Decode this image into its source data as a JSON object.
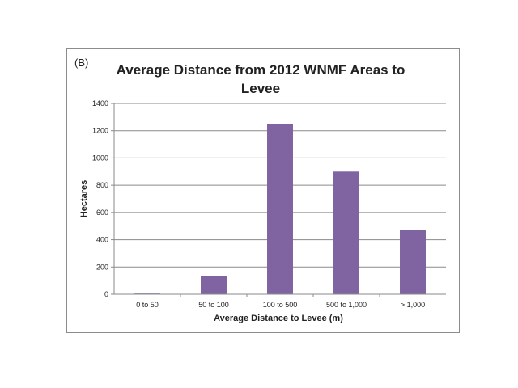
{
  "chart_data": {
    "type": "bar",
    "panel_label": "(B)",
    "title_lines": [
      "Average Distance from 2012 WNMF Areas to",
      "Levee"
    ],
    "xlabel": "Average Distance to Levee (m)",
    "ylabel": "Hectares",
    "categories": [
      "0 to 50",
      "50 to 100",
      "100 to 500",
      "500 to 1,000",
      "> 1,000"
    ],
    "values": [
      5,
      135,
      1250,
      900,
      470
    ],
    "ylim": [
      0,
      1400
    ],
    "yticks": [
      0,
      200,
      400,
      600,
      800,
      1000,
      1200,
      1400
    ],
    "grid": true,
    "legend": "none",
    "bar_color": "#8064a2"
  }
}
